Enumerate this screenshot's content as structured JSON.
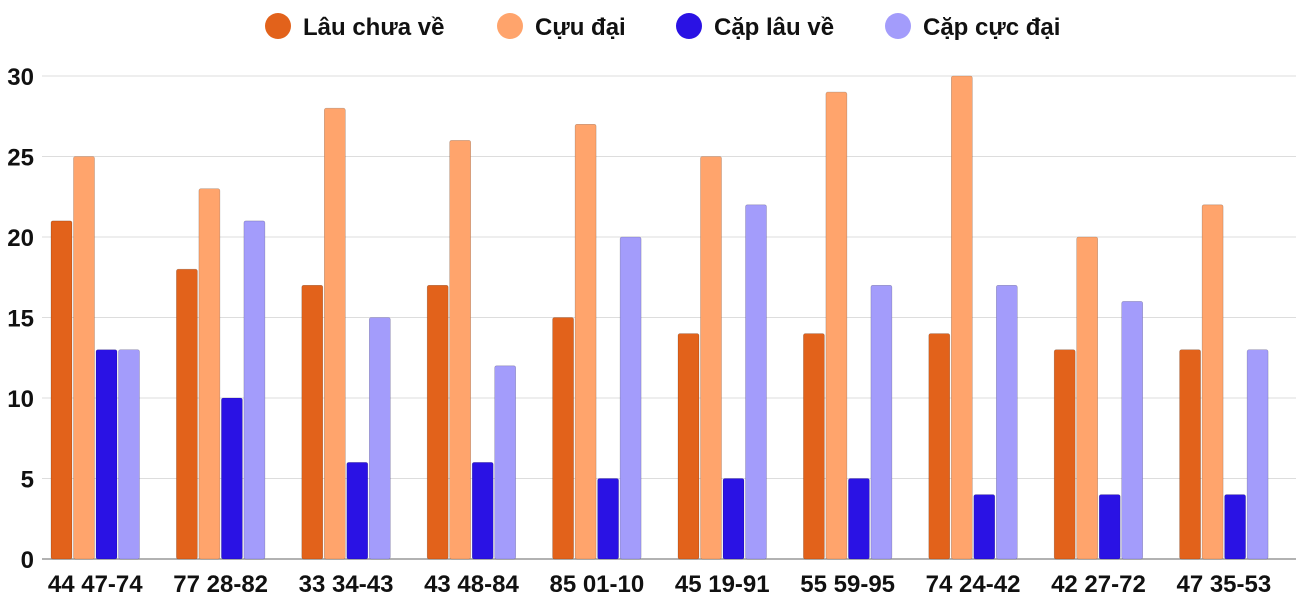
{
  "chart_data": {
    "type": "bar",
    "categories": [
      "44 47-74",
      "77 28-82",
      "33 34-43",
      "43 48-84",
      "85 01-10",
      "45 19-91",
      "55 59-95",
      "74 24-42",
      "42 27-72",
      "47 35-53"
    ],
    "series": [
      {
        "name": "Lâu chưa về",
        "color": "#E2621B",
        "values": [
          21,
          18,
          17,
          17,
          15,
          14,
          14,
          14,
          13,
          13
        ]
      },
      {
        "name": "Cựu đại",
        "color": "#FFA46C",
        "values": [
          25,
          23,
          28,
          26,
          27,
          25,
          29,
          30,
          20,
          22
        ]
      },
      {
        "name": "Cặp lâu về",
        "color": "#2A12E4",
        "values": [
          13,
          10,
          6,
          6,
          5,
          5,
          5,
          4,
          4,
          4
        ]
      },
      {
        "name": "Cặp cực đại",
        "color": "#A39CFB",
        "values": [
          13,
          21,
          15,
          12,
          20,
          22,
          17,
          17,
          16,
          13
        ]
      }
    ],
    "yticks": [
      "0",
      "5",
      "10",
      "15",
      "20",
      "25",
      "30"
    ],
    "ylim": [
      0,
      30
    ],
    "grid": true,
    "legend": "top-center"
  }
}
